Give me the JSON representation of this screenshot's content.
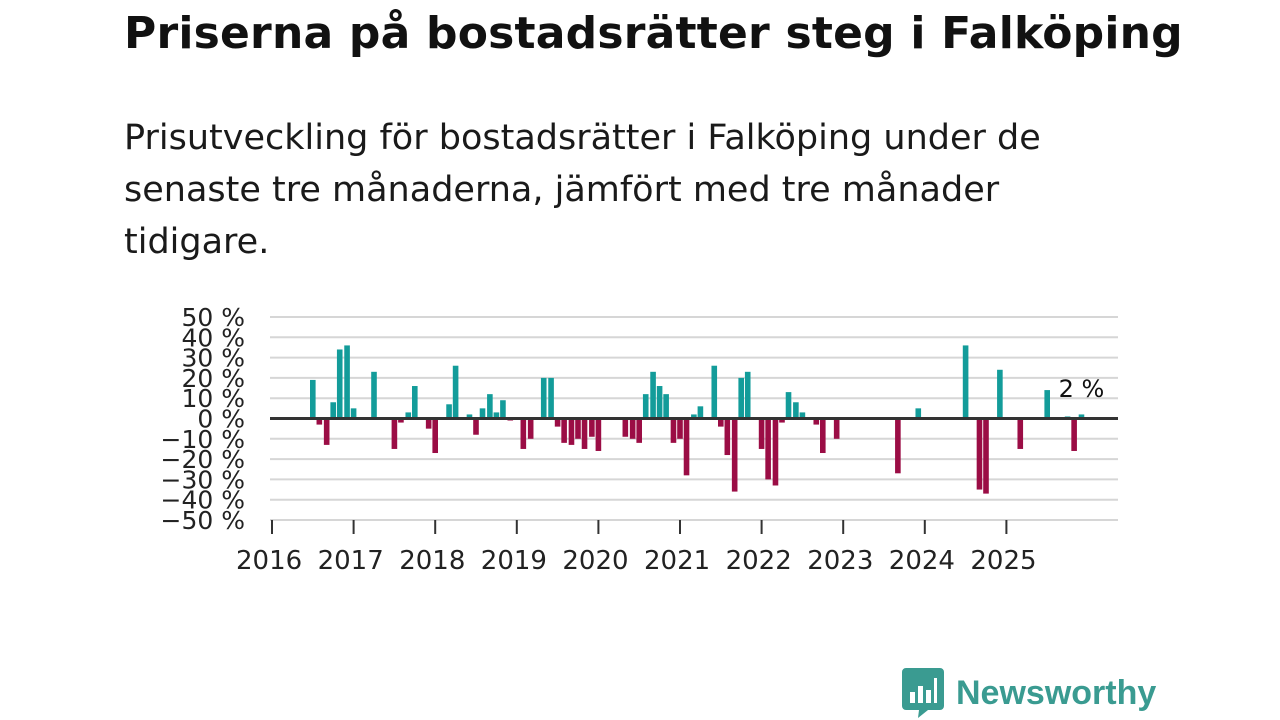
{
  "header": {
    "title": "Priserna på bostadsrätter steg i Falköping",
    "subtitle": "Prisutveckling för bostadsrätter i Falköping under de senaste tre månaderna, jämfört med tre månader tidigare."
  },
  "brand": {
    "name": "Newsworthy",
    "icon": "bar-chart-bubble-icon",
    "color": "#3a9b91"
  },
  "colors": {
    "positive": "#139c9a",
    "negative": "#9b0d45",
    "zero_line": "#333333",
    "grid": "#d6d6d6"
  },
  "chart_data": {
    "type": "bar",
    "title": "Priserna på bostadsrätter steg i Falköping",
    "ylabel": "",
    "xlabel": "",
    "ylim": [
      -50,
      50
    ],
    "y_ticks": [
      50,
      40,
      30,
      20,
      10,
      0,
      -10,
      -20,
      -30,
      -40,
      -50
    ],
    "y_tick_labels": [
      "50 %",
      "40 %",
      "30 %",
      "20 %",
      "10 %",
      "0 %",
      "−10 %",
      "−20 %",
      "−30 %",
      "−40 %",
      "−50 %"
    ],
    "x_ticks": [
      "2016",
      "2017",
      "2018",
      "2019",
      "2020",
      "2021",
      "2022",
      "2023",
      "2024",
      "2025"
    ],
    "x_start_year": 2016,
    "x_end_year": 2026.4,
    "grid": true,
    "last_value_label": "2 %",
    "series": [
      {
        "name": "Prisutveckling",
        "points": [
          {
            "t": 2016.5,
            "v": 19
          },
          {
            "t": 2016.58,
            "v": -3
          },
          {
            "t": 2016.67,
            "v": -13
          },
          {
            "t": 2016.75,
            "v": 8
          },
          {
            "t": 2016.83,
            "v": 34
          },
          {
            "t": 2016.92,
            "v": 36
          },
          {
            "t": 2017.0,
            "v": 5
          },
          {
            "t": 2017.25,
            "v": 23
          },
          {
            "t": 2017.5,
            "v": -15
          },
          {
            "t": 2017.58,
            "v": -2
          },
          {
            "t": 2017.67,
            "v": 3
          },
          {
            "t": 2017.75,
            "v": 16
          },
          {
            "t": 2017.92,
            "v": -5
          },
          {
            "t": 2018.0,
            "v": -17
          },
          {
            "t": 2018.17,
            "v": 7
          },
          {
            "t": 2018.25,
            "v": 26
          },
          {
            "t": 2018.42,
            "v": 2
          },
          {
            "t": 2018.5,
            "v": -8
          },
          {
            "t": 2018.58,
            "v": 5
          },
          {
            "t": 2018.67,
            "v": 12
          },
          {
            "t": 2018.75,
            "v": 3
          },
          {
            "t": 2018.83,
            "v": 9
          },
          {
            "t": 2018.92,
            "v": -1
          },
          {
            "t": 2019.08,
            "v": -15
          },
          {
            "t": 2019.17,
            "v": -10
          },
          {
            "t": 2019.33,
            "v": 20
          },
          {
            "t": 2019.42,
            "v": 20
          },
          {
            "t": 2019.5,
            "v": -4
          },
          {
            "t": 2019.58,
            "v": -12
          },
          {
            "t": 2019.67,
            "v": -13
          },
          {
            "t": 2019.75,
            "v": -10
          },
          {
            "t": 2019.83,
            "v": -15
          },
          {
            "t": 2019.92,
            "v": -9
          },
          {
            "t": 2020.0,
            "v": -16
          },
          {
            "t": 2020.33,
            "v": -9
          },
          {
            "t": 2020.42,
            "v": -10
          },
          {
            "t": 2020.5,
            "v": -12
          },
          {
            "t": 2020.58,
            "v": 12
          },
          {
            "t": 2020.67,
            "v": 23
          },
          {
            "t": 2020.75,
            "v": 16
          },
          {
            "t": 2020.83,
            "v": 12
          },
          {
            "t": 2020.92,
            "v": -12
          },
          {
            "t": 2021.0,
            "v": -10
          },
          {
            "t": 2021.08,
            "v": -28
          },
          {
            "t": 2021.17,
            "v": 2
          },
          {
            "t": 2021.25,
            "v": 6
          },
          {
            "t": 2021.42,
            "v": 26
          },
          {
            "t": 2021.5,
            "v": -4
          },
          {
            "t": 2021.58,
            "v": -18
          },
          {
            "t": 2021.67,
            "v": -36
          },
          {
            "t": 2021.75,
            "v": 20
          },
          {
            "t": 2021.83,
            "v": 23
          },
          {
            "t": 2022.0,
            "v": -15
          },
          {
            "t": 2022.08,
            "v": -30
          },
          {
            "t": 2022.17,
            "v": -33
          },
          {
            "t": 2022.25,
            "v": -2
          },
          {
            "t": 2022.33,
            "v": 13
          },
          {
            "t": 2022.42,
            "v": 8
          },
          {
            "t": 2022.5,
            "v": 3
          },
          {
            "t": 2022.67,
            "v": -3
          },
          {
            "t": 2022.75,
            "v": -17
          },
          {
            "t": 2022.92,
            "v": -10
          },
          {
            "t": 2023.67,
            "v": -27
          },
          {
            "t": 2023.92,
            "v": 5
          },
          {
            "t": 2024.5,
            "v": 36
          },
          {
            "t": 2024.67,
            "v": -35
          },
          {
            "t": 2024.75,
            "v": -37
          },
          {
            "t": 2024.92,
            "v": 24
          },
          {
            "t": 2025.17,
            "v": -15
          },
          {
            "t": 2025.5,
            "v": 14
          },
          {
            "t": 2025.75,
            "v": 1
          },
          {
            "t": 2025.83,
            "v": -16
          },
          {
            "t": 2025.92,
            "v": 2
          }
        ]
      }
    ]
  }
}
